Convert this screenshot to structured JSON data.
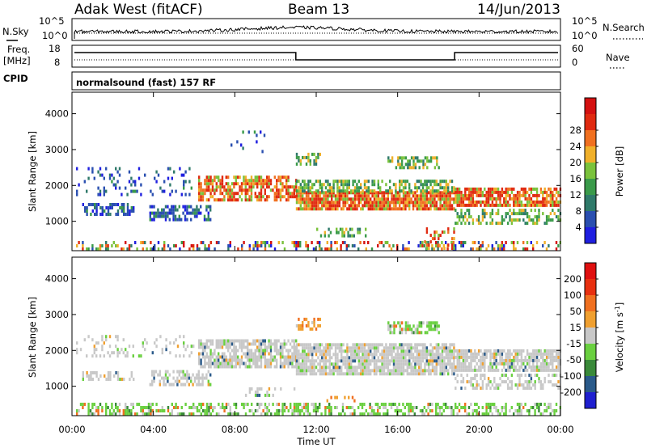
{
  "header": {
    "station": "Adak West (fitACF)",
    "beam": "Beam 13",
    "date": "14/Jun/2013"
  },
  "top_panels": {
    "nsky_label": "N.Sky",
    "nsky_ticks": [
      "10^5",
      "10^0"
    ],
    "nsearch_label": "N.Search",
    "nsearch_ticks": [
      "10^5",
      "10^0"
    ],
    "freq_label_line1": "Freq.",
    "freq_label_line2": "[MHz]",
    "freq_ticks": [
      "18",
      "8"
    ],
    "nave_label": "Nave",
    "nave_ticks": [
      "60",
      "0"
    ],
    "cpid_label": "CPID",
    "cpid_text": "normalsound (fast) 157 RF"
  },
  "chart_data": [
    {
      "type": "heatmap",
      "name": "power-panel",
      "ylabel": "Slant Range [km]",
      "xlabel": "",
      "ytick_labels": [
        "1000",
        "2000",
        "3000",
        "4000"
      ],
      "ylim": [
        180,
        4600
      ],
      "xlim_hours": [
        0,
        24
      ],
      "colorbar": {
        "label": "Power [dB]",
        "tick_labels": [
          "4",
          "8",
          "12",
          "16",
          "20",
          "24",
          "28"
        ],
        "colors": [
          "#1f1fe0",
          "#2a4fb0",
          "#2f7a6a",
          "#3a9a4a",
          "#7ac23c",
          "#f0b02a",
          "#f07020",
          "#e02a10",
          "#d41010"
        ]
      },
      "echo_bands": [
        {
          "t0": 0.2,
          "t1": 24,
          "r0": 180,
          "r1": 420,
          "density": 0.35,
          "level": "mixed"
        },
        {
          "t0": 0.5,
          "t1": 3.0,
          "r0": 1150,
          "r1": 1450,
          "density": 0.55,
          "level": "low"
        },
        {
          "t0": 3.8,
          "t1": 6.8,
          "r0": 1000,
          "r1": 1400,
          "density": 0.6,
          "level": "low"
        },
        {
          "t0": 0.2,
          "t1": 6.0,
          "r0": 1700,
          "r1": 2500,
          "density": 0.15,
          "level": "low"
        },
        {
          "t0": 6.2,
          "t1": 11.0,
          "r0": 1550,
          "r1": 2200,
          "density": 0.7,
          "level": "high"
        },
        {
          "t0": 11.0,
          "t1": 18.8,
          "r0": 1300,
          "r1": 1800,
          "density": 0.9,
          "level": "high"
        },
        {
          "t0": 11.0,
          "t1": 18.8,
          "r0": 1800,
          "r1": 2150,
          "density": 0.6,
          "level": "mid"
        },
        {
          "t0": 18.8,
          "t1": 24,
          "r0": 1400,
          "r1": 1900,
          "density": 0.75,
          "level": "high"
        },
        {
          "t0": 18.8,
          "t1": 24,
          "r0": 900,
          "r1": 1300,
          "density": 0.45,
          "level": "mid"
        },
        {
          "t0": 11.0,
          "t1": 12.2,
          "r0": 2550,
          "r1": 2850,
          "density": 0.55,
          "level": "mid"
        },
        {
          "t0": 15.5,
          "t1": 18.0,
          "r0": 2450,
          "r1": 2800,
          "density": 0.55,
          "level": "mid"
        },
        {
          "t0": 7.5,
          "t1": 10.0,
          "r0": 2900,
          "r1": 3500,
          "density": 0.05,
          "level": "low"
        },
        {
          "t0": 12.0,
          "t1": 14.5,
          "r0": 550,
          "r1": 750,
          "density": 0.35,
          "level": "mid"
        },
        {
          "t0": 17.2,
          "t1": 18.8,
          "r0": 200,
          "r1": 750,
          "density": 0.3,
          "level": "high"
        }
      ]
    },
    {
      "type": "heatmap",
      "name": "velocity-panel",
      "ylabel": "Slant Range [km]",
      "xlabel": "Time UT",
      "ytick_labels": [
        "1000",
        "2000",
        "3000",
        "4000"
      ],
      "xtick_labels": [
        "00:00",
        "04:00",
        "08:00",
        "12:00",
        "16:00",
        "20:00",
        "00:00"
      ],
      "ylim": [
        180,
        4600
      ],
      "xlim_hours": [
        0,
        24
      ],
      "colorbar": {
        "label": "Velocity [m s^-1]",
        "tick_labels": [
          "200",
          "100",
          "50",
          "15",
          "-15",
          "-50",
          "-100",
          "-200"
        ],
        "colors": [
          "#1f1fcf",
          "#2a5a8a",
          "#3a8a3a",
          "#6ad040",
          "#c8c8c8",
          "#f0a030",
          "#f07020",
          "#e83010",
          "#e01010"
        ]
      },
      "echo_bands": [
        {
          "t0": 0.2,
          "t1": 24,
          "r0": 180,
          "r1": 520,
          "density": 0.45,
          "level": "green"
        },
        {
          "t0": 0.5,
          "t1": 3.0,
          "r0": 1150,
          "r1": 1400,
          "density": 0.55,
          "level": "grey"
        },
        {
          "t0": 3.8,
          "t1": 6.8,
          "r0": 1000,
          "r1": 1400,
          "density": 0.55,
          "level": "grey"
        },
        {
          "t0": 0.2,
          "t1": 6.0,
          "r0": 1800,
          "r1": 2400,
          "density": 0.2,
          "level": "grey"
        },
        {
          "t0": 6.2,
          "t1": 11.0,
          "r0": 1500,
          "r1": 2300,
          "density": 0.75,
          "level": "grey"
        },
        {
          "t0": 11.0,
          "t1": 18.8,
          "r0": 1300,
          "r1": 2150,
          "density": 0.85,
          "level": "grey"
        },
        {
          "t0": 18.8,
          "t1": 24,
          "r0": 1400,
          "r1": 2000,
          "density": 0.8,
          "level": "grey"
        },
        {
          "t0": 18.8,
          "t1": 24,
          "r0": 900,
          "r1": 1300,
          "density": 0.45,
          "level": "grey"
        },
        {
          "t0": 11.0,
          "t1": 12.2,
          "r0": 2550,
          "r1": 2850,
          "density": 0.5,
          "level": "orange"
        },
        {
          "t0": 15.5,
          "t1": 18.0,
          "r0": 2450,
          "r1": 2800,
          "density": 0.55,
          "level": "green"
        },
        {
          "t0": 12.5,
          "t1": 14.0,
          "r0": 550,
          "r1": 700,
          "density": 0.35,
          "level": "orange"
        },
        {
          "t0": 8.5,
          "t1": 11.0,
          "r0": 700,
          "r1": 900,
          "density": 0.3,
          "level": "grey"
        }
      ]
    }
  ]
}
